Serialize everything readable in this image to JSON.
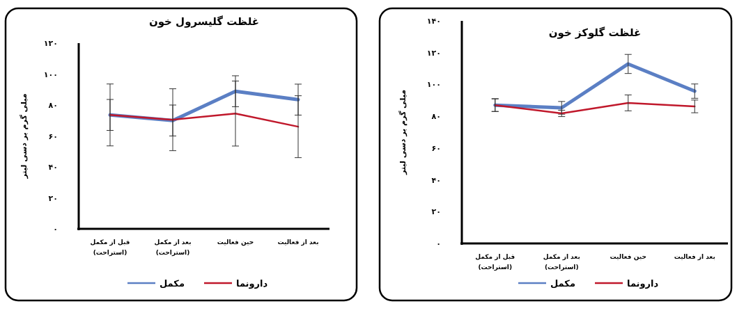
{
  "chart_data": [
    {
      "type": "line",
      "title": "غلظت گلیسرول خون",
      "ylabel": "میلی گرم بر دسی لیتر",
      "categories": [
        "قبل از مکمل\n(استراحت)",
        "بعد از مکمل\n(استراحت)",
        "حین فعالیت",
        "بعد از فعالیت"
      ],
      "series": [
        {
          "name": "مکمل",
          "color": "#5b7fc4",
          "values": [
            73.6,
            70,
            88.9,
            83.5
          ],
          "errors": [
            10,
            10,
            10,
            10
          ]
        },
        {
          "name": "دارونما",
          "color": "#c0182b",
          "values": [
            73.6,
            70.5,
            74.5,
            66
          ],
          "errors": [
            20,
            20,
            21,
            20
          ]
        }
      ],
      "ylim": [
        0,
        120
      ],
      "yticks": [
        {
          "value": 0,
          "label": "۰"
        },
        {
          "value": 20,
          "label": "۲۰"
        },
        {
          "value": 40,
          "label": "۴۰"
        },
        {
          "value": 60,
          "label": "۶۰"
        },
        {
          "value": 80,
          "label": "۸۰"
        },
        {
          "value": 100,
          "label": "۱۰۰"
        },
        {
          "value": 120,
          "label": "۱۲۰"
        }
      ],
      "legend": "bottom",
      "grid": false,
      "marker": "none",
      "line_style": "solid"
    },
    {
      "type": "line",
      "title": "غلظت گلوکز خون",
      "ylabel": "میلی گرم بر دسی لیتر",
      "categories": [
        "قبل از مکمل\n(استراحت)",
        "بعد از مکمل\n(استراحت)",
        "حین فعالیت",
        "بعد از فعالیت"
      ],
      "series": [
        {
          "name": "مکمل",
          "color": "#5b7fc4",
          "values": [
            87,
            85.3,
            112.9,
            95.8
          ],
          "errors": [
            4,
            4,
            6,
            4.5
          ]
        },
        {
          "name": "دارونما",
          "color": "#c0182b",
          "values": [
            87,
            81.8,
            88.4,
            86.2
          ],
          "errors": [
            4,
            2,
            5,
            4
          ]
        }
      ],
      "ylim": [
        0,
        140
      ],
      "yticks": [
        {
          "value": 0,
          "label": "۰"
        },
        {
          "value": 20,
          "label": "۲۰"
        },
        {
          "value": 40,
          "label": "۴۰"
        },
        {
          "value": 60,
          "label": "۶۰"
        },
        {
          "value": 80,
          "label": "۸۰"
        },
        {
          "value": 100,
          "label": "۱۰۰"
        },
        {
          "value": 120,
          "label": "۱۲۰"
        },
        {
          "value": 140,
          "label": "۱۴۰"
        }
      ],
      "legend": "bottom",
      "grid": false,
      "marker": "none",
      "line_style": "solid"
    }
  ]
}
